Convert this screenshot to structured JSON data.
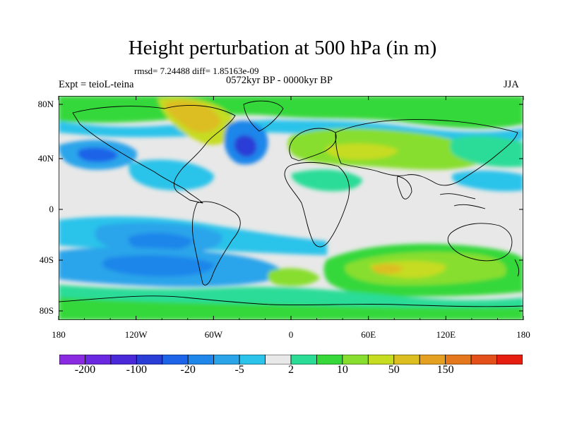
{
  "title": "Height perturbation at 500 hPa (in m)",
  "stats": "rmsd= 7.24488 diff= 1.85163e-09",
  "expt": "Expt = teioL-teina",
  "period": "0572kyr BP - 0000kyr BP",
  "season": "JJA",
  "lat_ticks": [
    "80N",
    "40N",
    "0",
    "40S",
    "80S"
  ],
  "lon_ticks": [
    "180",
    "120W",
    "60W",
    "0",
    "60E",
    "120E",
    "180"
  ],
  "colorbar": {
    "labels": [
      "-200",
      "-100",
      "-20",
      "-5",
      "2",
      "10",
      "50",
      "150"
    ],
    "colors": [
      "#8a2be2",
      "#6a28e0",
      "#4a2ad8",
      "#2a3ed6",
      "#1e64e8",
      "#1f86ea",
      "#2ba4ea",
      "#2cc3ea",
      "#e8e8e8",
      "#2bdc97",
      "#36d83a",
      "#88de2e",
      "#c6dc20",
      "#dcbe20",
      "#e4a021",
      "#e4781c",
      "#e4501a",
      "#e61e10"
    ]
  },
  "colors": {
    "neutral": "#e8e8e8",
    "coast": "#000000"
  }
}
